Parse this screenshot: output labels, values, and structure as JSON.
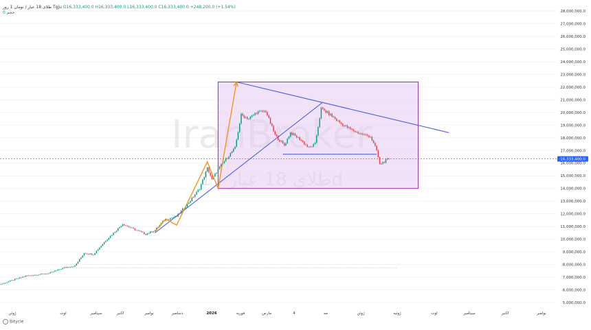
{
  "header": {
    "symbol": "طلای 18 عیار / تومان 1 روز",
    "exchange": "Tgju",
    "open": "O16,333,400.0",
    "high": "H16,333,400.0",
    "low": "L16,333,400.0",
    "close": "C16,333,400.0",
    "change": "+248,200.0 (+1.54%)",
    "volume_label": "حجم",
    "volume_value": "0"
  },
  "watermark": {
    "brand": "IranBroker",
    "sub": "طلای 18 عیار ، 1d"
  },
  "footer": {
    "source": "Bitycle"
  },
  "colors": {
    "up": "#089981",
    "down": "#f23645",
    "trend": "#4a5ee8",
    "arrow": "#f7931a",
    "box_fill": "#e6cbf0",
    "box_stroke": "#9c27b0",
    "last_price_bg": "#2962ff"
  },
  "price_axis": {
    "labels": [
      "28,000,000.0",
      "27,000,000.0",
      "26,000,000.0",
      "25,000,000.0",
      "24,000,000.0",
      "23,000,000.0",
      "22,000,000.0",
      "21,000,000.0",
      "20,000,000.0",
      "19,000,000.0",
      "18,000,000.0",
      "17,000,000.0",
      "16,000,000.0",
      "15,000,000.0",
      "14,000,000.0",
      "13,000,000.0",
      "12,000,000.0",
      "11,000,000.0",
      "10,000,000.0",
      "9,000,000.0",
      "8,000,000.0",
      "7,000,000.0",
      "6,000,000.0",
      "5,000,000.0"
    ],
    "last_price_label": "16,333,400.0"
  },
  "time_axis": {
    "labels": [
      "ژوئن",
      "اوت",
      "سپتامبر",
      "اکتبر",
      "نوامبر",
      "دسامبر",
      "2026",
      "فوریه",
      "مارس",
      "4",
      "مه",
      "ژوئن",
      "ژوئیه",
      "اوت",
      "سپتامبر",
      "اکتبر",
      "نوامبر"
    ]
  },
  "chart_data": {
    "type": "candlestick",
    "title": "",
    "xlabel": "",
    "ylabel": "",
    "ylim": [
      4500000,
      28500000
    ],
    "last_price": 16333400,
    "support_level": 7750000,
    "anchors": [
      {
        "t": 0,
        "v": 6300000
      },
      {
        "t": 10,
        "v": 6700000
      },
      {
        "t": 20,
        "v": 7100000
      },
      {
        "t": 35,
        "v": 7300000
      },
      {
        "t": 45,
        "v": 7750000
      },
      {
        "t": 52,
        "v": 7900000
      },
      {
        "t": 58,
        "v": 8900000
      },
      {
        "t": 64,
        "v": 8800000
      },
      {
        "t": 72,
        "v": 9900000
      },
      {
        "t": 78,
        "v": 10600000
      },
      {
        "t": 83,
        "v": 11200000
      },
      {
        "t": 90,
        "v": 10800000
      },
      {
        "t": 98,
        "v": 10400000
      },
      {
        "t": 104,
        "v": 10700000
      },
      {
        "t": 110,
        "v": 11500000
      },
      {
        "t": 118,
        "v": 11800000
      },
      {
        "t": 126,
        "v": 12900000
      },
      {
        "t": 133,
        "v": 14000000
      },
      {
        "t": 138,
        "v": 15600000
      },
      {
        "t": 141,
        "v": 14700000
      },
      {
        "t": 145,
        "v": 15500000
      },
      {
        "t": 150,
        "v": 16300000
      },
      {
        "t": 156,
        "v": 17200000
      },
      {
        "t": 160,
        "v": 19800000
      },
      {
        "t": 165,
        "v": 19500000
      },
      {
        "t": 170,
        "v": 20000000
      },
      {
        "t": 176,
        "v": 20100000
      },
      {
        "t": 182,
        "v": 18200000
      },
      {
        "t": 188,
        "v": 17400000
      },
      {
        "t": 192,
        "v": 18400000
      },
      {
        "t": 198,
        "v": 17900000
      },
      {
        "t": 204,
        "v": 17200000
      },
      {
        "t": 208,
        "v": 17500000
      },
      {
        "t": 212,
        "v": 20300000
      },
      {
        "t": 218,
        "v": 19800000
      },
      {
        "t": 225,
        "v": 19100000
      },
      {
        "t": 232,
        "v": 18600000
      },
      {
        "t": 238,
        "v": 18300000
      },
      {
        "t": 244,
        "v": 18100000
      },
      {
        "t": 248,
        "v": 17000000
      },
      {
        "t": 250,
        "v": 15900000
      },
      {
        "t": 254,
        "v": 16200000
      },
      {
        "t": 256,
        "v": 16333400
      }
    ],
    "annotations": {
      "rectangle": {
        "t1": 145,
        "t2": 275,
        "v1": 14000000,
        "v2": 22400000
      },
      "rising_trendline": [
        {
          "t": 104,
          "v": 10500000
        },
        {
          "t": 213,
          "v": 20800000
        }
      ],
      "falling_trendline": [
        {
          "t": 157,
          "v": 22400000
        },
        {
          "t": 295,
          "v": 18400000
        }
      ],
      "neckline": [
        {
          "t": 187,
          "v": 16700000
        },
        {
          "t": 248,
          "v": 16700000
        }
      ],
      "arrow_path": [
        {
          "t": 104,
          "v": 10600000
        },
        {
          "t": 111,
          "v": 11600000
        },
        {
          "t": 118,
          "v": 11100000
        },
        {
          "t": 138,
          "v": 16100000
        },
        {
          "t": 145,
          "v": 14000000
        },
        {
          "t": 157,
          "v": 22400000
        }
      ]
    }
  }
}
